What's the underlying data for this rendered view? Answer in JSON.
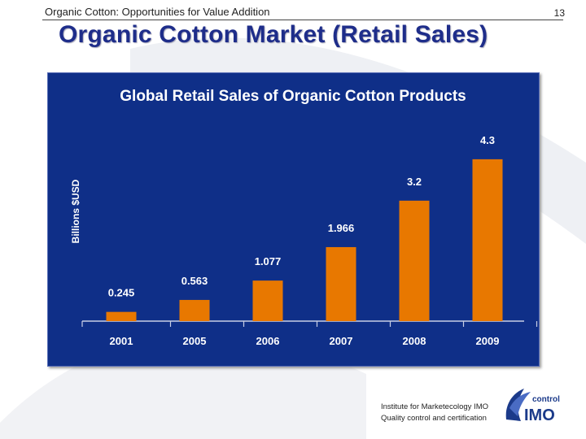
{
  "header": {
    "subtitle": "Organic Cotton: Opportunities for Value Addition",
    "page_number": "13"
  },
  "slide": {
    "title": "Organic Cotton Market (Retail Sales)"
  },
  "colors": {
    "panel_bg": "#0f2f88",
    "bar": "#e87800",
    "title": "#1e2d8a",
    "text_on_panel": "#ffffff"
  },
  "chart_data": {
    "type": "bar",
    "title": "Global Retail Sales of Organic Cotton Products",
    "ylabel": "Billions $USD",
    "xlabel": "",
    "categories": [
      "2001",
      "2005",
      "2006",
      "2007",
      "2008",
      "2009"
    ],
    "values": [
      0.245,
      0.563,
      1.077,
      1.966,
      3.2,
      4.3
    ],
    "value_labels": [
      "0.245",
      "0.563",
      "1.077",
      "1.966",
      "3.2",
      "4.3"
    ],
    "ylim": [
      0,
      4.6
    ],
    "grid": false,
    "legend": "none"
  },
  "footer": {
    "line1": "Institute for Marketecology IMO",
    "line2": "Quality control and certification",
    "logo_small": "control",
    "logo_big": "IMO"
  }
}
